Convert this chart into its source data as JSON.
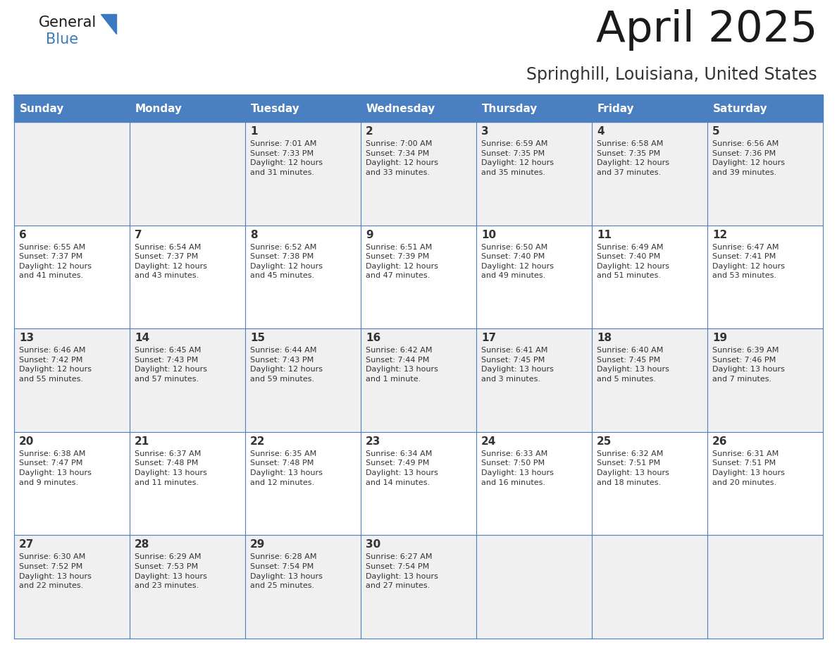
{
  "title": "April 2025",
  "subtitle": "Springhill, Louisiana, United States",
  "header_bg_color": "#4a7fc1",
  "header_text_color": "#FFFFFF",
  "day_names": [
    "Sunday",
    "Monday",
    "Tuesday",
    "Wednesday",
    "Thursday",
    "Friday",
    "Saturday"
  ],
  "odd_row_bg": "#F0F0F0",
  "even_row_bg": "#FFFFFF",
  "cell_border_color": "#4a7fc1",
  "title_color": "#1a1a1a",
  "subtitle_color": "#333333",
  "text_color": "#333333",
  "logo_general_color": "#1a1a1a",
  "logo_blue_color": "#3a7abf",
  "days_data": [
    {
      "day": "",
      "info": ""
    },
    {
      "day": "",
      "info": ""
    },
    {
      "day": "1",
      "info": "Sunrise: 7:01 AM\nSunset: 7:33 PM\nDaylight: 12 hours\nand 31 minutes."
    },
    {
      "day": "2",
      "info": "Sunrise: 7:00 AM\nSunset: 7:34 PM\nDaylight: 12 hours\nand 33 minutes."
    },
    {
      "day": "3",
      "info": "Sunrise: 6:59 AM\nSunset: 7:35 PM\nDaylight: 12 hours\nand 35 minutes."
    },
    {
      "day": "4",
      "info": "Sunrise: 6:58 AM\nSunset: 7:35 PM\nDaylight: 12 hours\nand 37 minutes."
    },
    {
      "day": "5",
      "info": "Sunrise: 6:56 AM\nSunset: 7:36 PM\nDaylight: 12 hours\nand 39 minutes."
    },
    {
      "day": "6",
      "info": "Sunrise: 6:55 AM\nSunset: 7:37 PM\nDaylight: 12 hours\nand 41 minutes."
    },
    {
      "day": "7",
      "info": "Sunrise: 6:54 AM\nSunset: 7:37 PM\nDaylight: 12 hours\nand 43 minutes."
    },
    {
      "day": "8",
      "info": "Sunrise: 6:52 AM\nSunset: 7:38 PM\nDaylight: 12 hours\nand 45 minutes."
    },
    {
      "day": "9",
      "info": "Sunrise: 6:51 AM\nSunset: 7:39 PM\nDaylight: 12 hours\nand 47 minutes."
    },
    {
      "day": "10",
      "info": "Sunrise: 6:50 AM\nSunset: 7:40 PM\nDaylight: 12 hours\nand 49 minutes."
    },
    {
      "day": "11",
      "info": "Sunrise: 6:49 AM\nSunset: 7:40 PM\nDaylight: 12 hours\nand 51 minutes."
    },
    {
      "day": "12",
      "info": "Sunrise: 6:47 AM\nSunset: 7:41 PM\nDaylight: 12 hours\nand 53 minutes."
    },
    {
      "day": "13",
      "info": "Sunrise: 6:46 AM\nSunset: 7:42 PM\nDaylight: 12 hours\nand 55 minutes."
    },
    {
      "day": "14",
      "info": "Sunrise: 6:45 AM\nSunset: 7:43 PM\nDaylight: 12 hours\nand 57 minutes."
    },
    {
      "day": "15",
      "info": "Sunrise: 6:44 AM\nSunset: 7:43 PM\nDaylight: 12 hours\nand 59 minutes."
    },
    {
      "day": "16",
      "info": "Sunrise: 6:42 AM\nSunset: 7:44 PM\nDaylight: 13 hours\nand 1 minute."
    },
    {
      "day": "17",
      "info": "Sunrise: 6:41 AM\nSunset: 7:45 PM\nDaylight: 13 hours\nand 3 minutes."
    },
    {
      "day": "18",
      "info": "Sunrise: 6:40 AM\nSunset: 7:45 PM\nDaylight: 13 hours\nand 5 minutes."
    },
    {
      "day": "19",
      "info": "Sunrise: 6:39 AM\nSunset: 7:46 PM\nDaylight: 13 hours\nand 7 minutes."
    },
    {
      "day": "20",
      "info": "Sunrise: 6:38 AM\nSunset: 7:47 PM\nDaylight: 13 hours\nand 9 minutes."
    },
    {
      "day": "21",
      "info": "Sunrise: 6:37 AM\nSunset: 7:48 PM\nDaylight: 13 hours\nand 11 minutes."
    },
    {
      "day": "22",
      "info": "Sunrise: 6:35 AM\nSunset: 7:48 PM\nDaylight: 13 hours\nand 12 minutes."
    },
    {
      "day": "23",
      "info": "Sunrise: 6:34 AM\nSunset: 7:49 PM\nDaylight: 13 hours\nand 14 minutes."
    },
    {
      "day": "24",
      "info": "Sunrise: 6:33 AM\nSunset: 7:50 PM\nDaylight: 13 hours\nand 16 minutes."
    },
    {
      "day": "25",
      "info": "Sunrise: 6:32 AM\nSunset: 7:51 PM\nDaylight: 13 hours\nand 18 minutes."
    },
    {
      "day": "26",
      "info": "Sunrise: 6:31 AM\nSunset: 7:51 PM\nDaylight: 13 hours\nand 20 minutes."
    },
    {
      "day": "27",
      "info": "Sunrise: 6:30 AM\nSunset: 7:52 PM\nDaylight: 13 hours\nand 22 minutes."
    },
    {
      "day": "28",
      "info": "Sunrise: 6:29 AM\nSunset: 7:53 PM\nDaylight: 13 hours\nand 23 minutes."
    },
    {
      "day": "29",
      "info": "Sunrise: 6:28 AM\nSunset: 7:54 PM\nDaylight: 13 hours\nand 25 minutes."
    },
    {
      "day": "30",
      "info": "Sunrise: 6:27 AM\nSunset: 7:54 PM\nDaylight: 13 hours\nand 27 minutes."
    },
    {
      "day": "",
      "info": ""
    },
    {
      "day": "",
      "info": ""
    },
    {
      "day": "",
      "info": ""
    }
  ]
}
